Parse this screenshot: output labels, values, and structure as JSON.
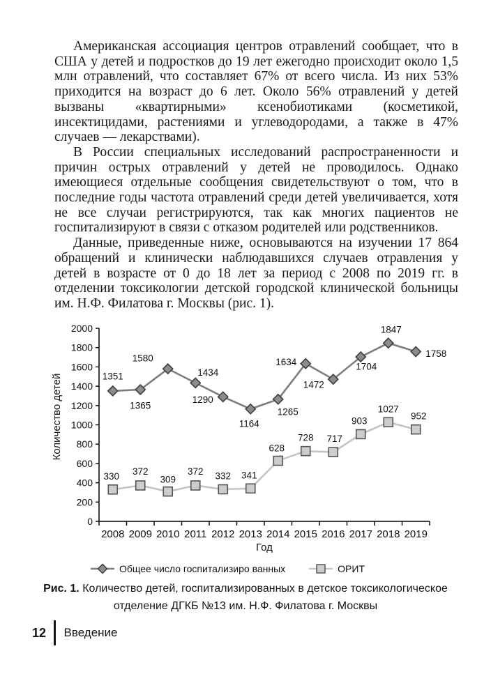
{
  "document": {
    "paragraphs": [
      "Американская ассоциация центров отравлений сообщает, что в США у детей и подростков до 19 лет ежегодно происходит около 1,5 млн отравлений, что составляет 67% от всего числа. Из них 53% приходится на возраст до 6 лет. Около 56% отравлений у детей вызваны «квартирными» ксенобиотиками (косметикой, инсектицидами, растениями и углеводородами, а также в 47% случаев — лекарствами).",
      "В России специальных исследований распространенности и причин острых отравлений у детей не проводилось. Однако имеющиеся отдельные сообщения свидетельствуют о том, что в последние годы частота отравлений среди детей увеличивается, хотя не все случаи регистрируются, так как многих пациентов не госпитализируют в связи с отказом родителей или родственников.",
      "Данные, приведенные ниже, основываются на изучении 17 864 обращений и клинически наблюдавшихся случаев отравления у детей в возрасте от 0 до 18 лет за период с 2008 по 2019 гг. в отделении токсикологии детской городской клинической больницы им. Н.Ф. Филатова г. Москвы (рис. 1)."
    ]
  },
  "figure": {
    "caption_label": "Рис. 1.",
    "caption_text": "Количество детей, госпитализированных в детское токсикологическое отделение ДГКБ №13 им. Н.Ф. Филатова г. Москвы"
  },
  "footer": {
    "page_number": "12",
    "section": "Введение"
  },
  "chart_data": {
    "type": "line",
    "title": "",
    "xlabel": "Год",
    "ylabel": "Количество детей",
    "ylim": [
      0,
      2000
    ],
    "ytick_step": 200,
    "grid": false,
    "legend_position": "bottom",
    "categories": [
      "2008",
      "2009",
      "2010",
      "2011",
      "2012",
      "2013",
      "2014",
      "2015",
      "2016",
      "2017",
      "2018",
      "2019"
    ],
    "series": [
      {
        "name": "Общее число госпитализиро ванных",
        "marker": "diamond",
        "line_color": "#7d7d7d",
        "fill": "#8c8c8c",
        "stroke": "#3d3d3d",
        "values": [
          1351,
          1365,
          1580,
          1434,
          1290,
          1164,
          1265,
          1634,
          1472,
          1704,
          1847,
          1758
        ],
        "label_offsets": [
          [
            0,
            -21
          ],
          [
            0,
            23
          ],
          [
            -36,
            -15
          ],
          [
            18,
            -15
          ],
          [
            -29,
            4
          ],
          [
            -2,
            21
          ],
          [
            14,
            18
          ],
          [
            -28,
            -2
          ],
          [
            -28,
            8
          ],
          [
            8,
            14
          ],
          [
            4,
            -19
          ],
          [
            29,
            3
          ]
        ]
      },
      {
        "name": "ОРИТ",
        "marker": "square",
        "line_color": "#c4c4c4",
        "fill": "#cdcdcd",
        "stroke": "#555555",
        "values": [
          330,
          372,
          309,
          372,
          332,
          341,
          628,
          728,
          717,
          903,
          1027,
          952
        ],
        "label_offsets": [
          [
            -2,
            -19
          ],
          [
            0,
            -20
          ],
          [
            0,
            -17
          ],
          [
            0,
            -20
          ],
          [
            0,
            -19
          ],
          [
            -2,
            -19
          ],
          [
            -2,
            -18
          ],
          [
            0,
            -19
          ],
          [
            2,
            -19
          ],
          [
            -2,
            -19
          ],
          [
            0,
            -19
          ],
          [
            4,
            -19
          ]
        ]
      }
    ]
  }
}
